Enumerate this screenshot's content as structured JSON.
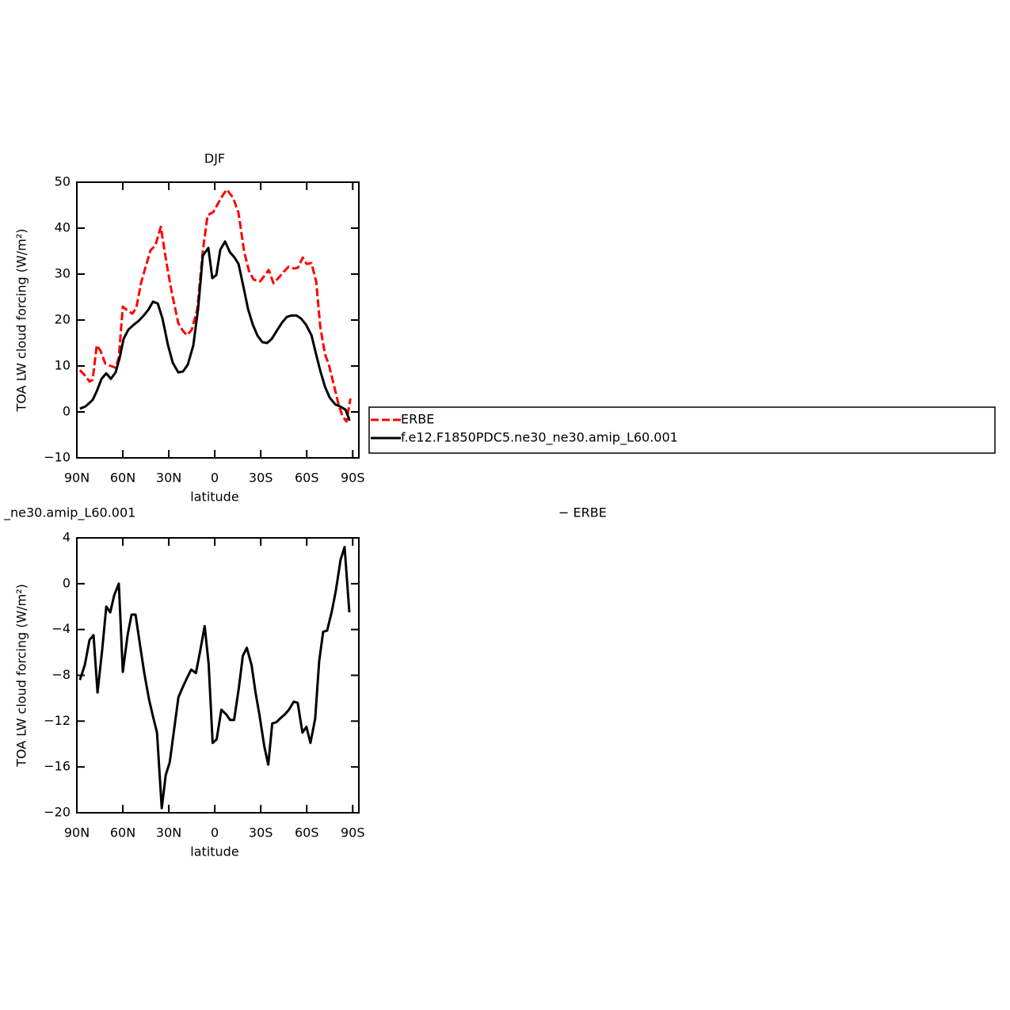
{
  "chart_data": [
    {
      "type": "line",
      "title": "DJF",
      "xlabel": "latitude",
      "ylabel": "TOA LW cloud forcing (W/m²)",
      "xlim": [
        90,
        -94
      ],
      "ylim": [
        -10,
        50
      ],
      "xticks": [
        {
          "value": 90,
          "label": "90N"
        },
        {
          "value": 60,
          "label": "60N"
        },
        {
          "value": 30,
          "label": "30N"
        },
        0,
        {
          "value": -30,
          "label": "30S"
        },
        {
          "value": -60,
          "label": "60S"
        },
        {
          "value": -90,
          "label": "90S"
        }
      ],
      "yticks": [
        {
          "value": -10,
          "label": "−10"
        },
        0,
        10,
        20,
        30,
        40,
        50
      ],
      "legend": "right",
      "series": [
        {
          "name": "ERBE",
          "color": "#ff0000",
          "dash": true,
          "x": [
            88,
            84.3,
            81.7,
            79.7,
            77,
            74.5,
            71.4,
            67.8,
            64.7,
            62.6,
            60,
            57.4,
            53.8,
            51.2,
            48.1,
            45,
            41.9,
            38.8,
            35.2,
            31.6,
            28,
            23.8,
            20.7,
            18.1,
            15,
            11.4,
            7.8,
            4.7,
            1,
            -4.7,
            -7.8,
            -12,
            -15.5,
            -19.2,
            -22.3,
            -25.4,
            -29.5,
            -32.6,
            -35.2,
            -38.3,
            -41.4,
            -45,
            -48.1,
            -51.7,
            -54.3,
            -57.4,
            -60,
            -63.1,
            -66.2,
            -68.8,
            -71.9,
            -74.5,
            -77.6,
            -80.7,
            -83.3,
            -85.9,
            -88.5
          ],
          "values": [
            9.1,
            7.8,
            6.6,
            7,
            14.5,
            13.3,
            10.5,
            10,
            9.6,
            11.9,
            22.9,
            22.2,
            21.4,
            22.6,
            28.1,
            31.7,
            35.2,
            36.2,
            40.3,
            32.6,
            25.9,
            19.3,
            17.6,
            16.7,
            17.9,
            22.4,
            35,
            42.8,
            43.5,
            46.9,
            48.4,
            46.6,
            43.3,
            34.8,
            30.7,
            28.8,
            28.4,
            29.7,
            30.9,
            28,
            29.1,
            30.5,
            31.6,
            31.2,
            31.4,
            33.6,
            32.2,
            32.4,
            28.3,
            18.6,
            12.6,
            10.2,
            6,
            1.7,
            -0.9,
            -2.1,
            2.9
          ]
        },
        {
          "name": "f.e12.F1850PDC5.ne30_ne30.amip_L60.001",
          "color": "#000000",
          "dash": false,
          "x": [
            88,
            84.3,
            79.7,
            77,
            73.9,
            70.8,
            67.8,
            64.7,
            62.1,
            59.5,
            56.4,
            52.8,
            49.7,
            46.6,
            43.4,
            40.3,
            37.2,
            34.1,
            30.5,
            27.4,
            23.8,
            20.7,
            17.6,
            14,
            10.9,
            7.8,
            4.2,
            1.6,
            -1,
            -3.6,
            -6.7,
            -9.8,
            -12.9,
            -15.5,
            -18.6,
            -21.7,
            -24.8,
            -27.9,
            -31,
            -34.1,
            -37.2,
            -40.9,
            -44,
            -47.1,
            -50.2,
            -53.3,
            -56.4,
            -59.5,
            -63.1,
            -65.7,
            -68.8,
            -71.9,
            -75,
            -78.7,
            -81.7,
            -85.3,
            -88
          ],
          "values": [
            0.7,
            1.2,
            2.6,
            4.5,
            7.2,
            8.4,
            7.2,
            8.6,
            11.7,
            15.9,
            17.9,
            19,
            19.8,
            20.9,
            22.2,
            24,
            23.6,
            20.3,
            14.5,
            10.7,
            8.6,
            8.8,
            10.3,
            14.5,
            22.4,
            34,
            35.7,
            29.1,
            29.8,
            35.3,
            37.1,
            34.8,
            33.6,
            32.2,
            27.4,
            22.4,
            19,
            16.6,
            15.2,
            15,
            15.9,
            17.9,
            19.5,
            20.7,
            21,
            21,
            20.3,
            19,
            16.7,
            13.1,
            9,
            5.5,
            3.1,
            1.6,
            1.2,
            0.5,
            -1.9
          ]
        }
      ]
    },
    {
      "type": "line",
      "title": [
        "_ne30.amip_L60.001",
        "− ERBE"
      ],
      "xlabel": "latitude",
      "ylabel": "TOA LW cloud forcing (W/m²)",
      "xlim": [
        90,
        -94
      ],
      "ylim": [
        -20,
        4
      ],
      "xticks": [
        {
          "value": 90,
          "label": "90N"
        },
        {
          "value": 60,
          "label": "60N"
        },
        {
          "value": 30,
          "label": "30N"
        },
        0,
        {
          "value": -30,
          "label": "30S"
        },
        {
          "value": -60,
          "label": "60S"
        },
        {
          "value": -90,
          "label": "90S"
        }
      ],
      "yticks": [
        {
          "value": -20,
          "label": "−20"
        },
        {
          "value": -16,
          "label": "−16"
        },
        {
          "value": -12,
          "label": "−12"
        },
        {
          "value": -8,
          "label": "−8"
        },
        {
          "value": -4,
          "label": "−4"
        },
        0,
        4
      ],
      "series": [
        {
          "color": "#000000",
          "dash": false,
          "x": [
            88,
            84.8,
            81.7,
            79.1,
            76.5,
            73.4,
            70.8,
            68.2,
            65.6,
            62.6,
            60,
            56.9,
            54.3,
            51.7,
            48.6,
            46,
            42.9,
            40.3,
            37.7,
            34.6,
            32,
            29.4,
            26.3,
            23.7,
            21.1,
            18,
            15.4,
            12.3,
            9.7,
            6.6,
            4,
            1.4,
            -1.2,
            -4.3,
            -7.4,
            -10,
            -12.6,
            -15.7,
            -18.3,
            -20.9,
            -24,
            -26.6,
            -29.2,
            -32.3,
            -34.9,
            -37.5,
            -40.1,
            -43.2,
            -45.8,
            -48.4,
            -51.5,
            -54.1,
            -57.2,
            -59.8,
            -62.4,
            -65.5,
            -68.1,
            -70.7,
            -73.3,
            -76.4,
            -79,
            -82.1,
            -84.7,
            -87.8
          ],
          "values": [
            -8.4,
            -7.1,
            -4.9,
            -4.5,
            -9.5,
            -5.7,
            -2,
            -2.5,
            -1,
            0,
            -7.7,
            -4.5,
            -2.7,
            -2.7,
            -5.5,
            -7.8,
            -10.1,
            -11.6,
            -13,
            -19.6,
            -16.7,
            -15.6,
            -12.5,
            -9.9,
            -9.1,
            -8.2,
            -7.5,
            -7.8,
            -6,
            -3.7,
            -7,
            -13.9,
            -13.6,
            -11,
            -11.4,
            -11.9,
            -11.9,
            -9.1,
            -6.3,
            -5.6,
            -7.1,
            -9.5,
            -11.5,
            -14.2,
            -15.8,
            -12.2,
            -12.1,
            -11.7,
            -11.4,
            -11,
            -10.3,
            -10.4,
            -13,
            -12.5,
            -13.9,
            -11.8,
            -6.8,
            -4.2,
            -4.1,
            -2.4,
            -0.6,
            2.1,
            3.2,
            -2.5
          ]
        }
      ]
    }
  ]
}
